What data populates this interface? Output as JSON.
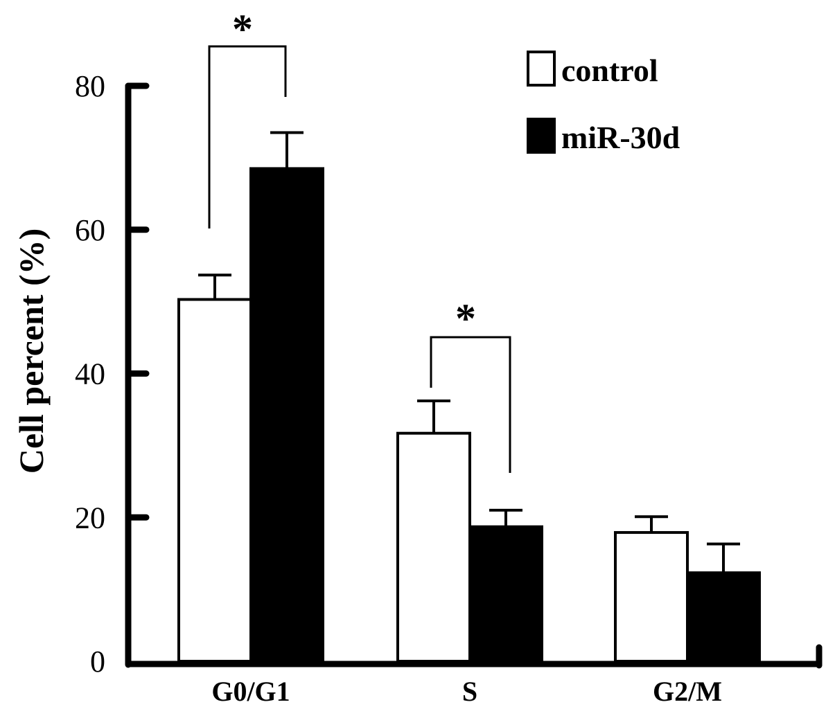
{
  "chart_data": {
    "type": "bar",
    "title": "",
    "xlabel": "",
    "ylabel": "Cell percent (%)",
    "ylim": [
      0,
      80
    ],
    "yticks": [
      0,
      20,
      40,
      60,
      80
    ],
    "categories": [
      "G0/G1",
      "S",
      "G2/M"
    ],
    "series": [
      {
        "name": "control",
        "values": [
          50.3,
          31.7,
          17.9
        ],
        "errors": [
          3.4,
          4.5,
          2.2
        ],
        "color": "#ffffff",
        "stroke": "#000000"
      },
      {
        "name": "miR-30d",
        "values": [
          68.5,
          18.7,
          12.3
        ],
        "errors": [
          5.0,
          2.3,
          4.0
        ],
        "color": "#000000",
        "stroke": "#000000"
      }
    ],
    "significance": [
      {
        "category": "G0/G1",
        "label": "*"
      },
      {
        "category": "S",
        "label": "*"
      }
    ],
    "legend_position": "top-right",
    "grid": false
  }
}
